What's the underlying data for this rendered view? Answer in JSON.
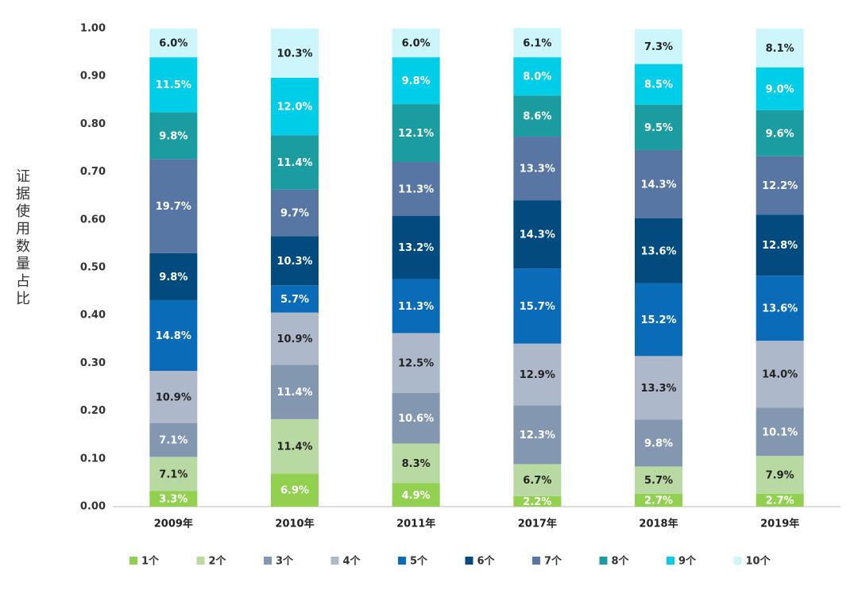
{
  "chart_data": {
    "type": "stacked_bar",
    "y_label": "证据使用数量占比",
    "categories": [
      "2009年",
      "2010年",
      "2011年",
      "2017年",
      "2018年",
      "2019年"
    ],
    "ylim": [
      0,
      1
    ],
    "yticks": [
      {
        "value": 0,
        "label": "0.00"
      },
      {
        "value": 0.1,
        "label": "0.10"
      },
      {
        "value": 0.2,
        "label": "0.20"
      },
      {
        "value": 0.3,
        "label": "0.30"
      },
      {
        "value": 0.4,
        "label": "0.40"
      },
      {
        "value": 0.5,
        "label": "0.50"
      },
      {
        "value": 0.6,
        "label": "0.60"
      },
      {
        "value": 0.7,
        "label": "0.70"
      },
      {
        "value": 0.8,
        "label": "0.80"
      },
      {
        "value": 0.9,
        "label": "0.90"
      },
      {
        "value": 1,
        "label": "1.00"
      }
    ],
    "legend": "bottom",
    "series": [
      {
        "name": "1个",
        "color": "#92d050",
        "values": [
          0.033,
          0.069,
          0.049,
          0.022,
          0.027,
          0.027
        ],
        "value_labels": [
          "3.3%",
          "6.9%",
          "4.9%",
          "2.2%",
          "2.7%",
          "2.7%"
        ]
      },
      {
        "name": "2个",
        "color": "#b9d9a3",
        "values": [
          0.071,
          0.114,
          0.083,
          0.067,
          0.057,
          0.079
        ],
        "value_labels": [
          "7.1%",
          "11.4%",
          "8.3%",
          "6.7%",
          "5.7%",
          "7.9%"
        ]
      },
      {
        "name": "3个",
        "color": "#8497b0",
        "values": [
          0.071,
          0.114,
          0.106,
          0.123,
          0.098,
          0.101
        ],
        "value_labels": [
          "7.1%",
          "11.4%",
          "10.6%",
          "12.3%",
          "9.8%",
          "10.1%"
        ]
      },
      {
        "name": "4个",
        "color": "#adb9ca",
        "values": [
          0.109,
          0.109,
          0.125,
          0.129,
          0.133,
          0.14
        ],
        "value_labels": [
          "10.9%",
          "10.9%",
          "12.5%",
          "12.9%",
          "13.3%",
          "14.0%"
        ]
      },
      {
        "name": "5个",
        "color": "#0a6cb8",
        "values": [
          0.148,
          0.057,
          0.113,
          0.157,
          0.152,
          0.136
        ],
        "value_labels": [
          "14.8%",
          "5.7%",
          "11.3%",
          "15.7%",
          "15.2%",
          "13.6%"
        ]
      },
      {
        "name": "6个",
        "color": "#014b7f",
        "values": [
          0.098,
          0.103,
          0.132,
          0.143,
          0.136,
          0.128
        ],
        "value_labels": [
          "9.8%",
          "10.3%",
          "13.2%",
          "14.3%",
          "13.6%",
          "12.8%"
        ]
      },
      {
        "name": "7个",
        "color": "#5876a3",
        "values": [
          0.197,
          0.097,
          0.113,
          0.133,
          0.143,
          0.122
        ],
        "value_labels": [
          "19.7%",
          "9.7%",
          "11.3%",
          "13.3%",
          "14.3%",
          "12.2%"
        ]
      },
      {
        "name": "8个",
        "color": "#1a9ca0",
        "values": [
          0.098,
          0.114,
          0.121,
          0.086,
          0.095,
          0.096
        ],
        "value_labels": [
          "9.8%",
          "11.4%",
          "12.1%",
          "8.6%",
          "9.5%",
          "9.6%"
        ]
      },
      {
        "name": "9个",
        "color": "#00cde8",
        "values": [
          0.115,
          0.12,
          0.098,
          0.08,
          0.085,
          0.09
        ],
        "value_labels": [
          "11.5%",
          "12.0%",
          "9.8%",
          "8.0%",
          "8.5%",
          "9.0%"
        ]
      },
      {
        "name": "10个",
        "color": "#cdf6fc",
        "values": [
          0.06,
          0.103,
          0.06,
          0.061,
          0.073,
          0.081
        ],
        "value_labels": [
          "6.0%",
          "10.3%",
          "6.0%",
          "6.1%",
          "7.3%",
          "8.1%"
        ]
      }
    ]
  }
}
